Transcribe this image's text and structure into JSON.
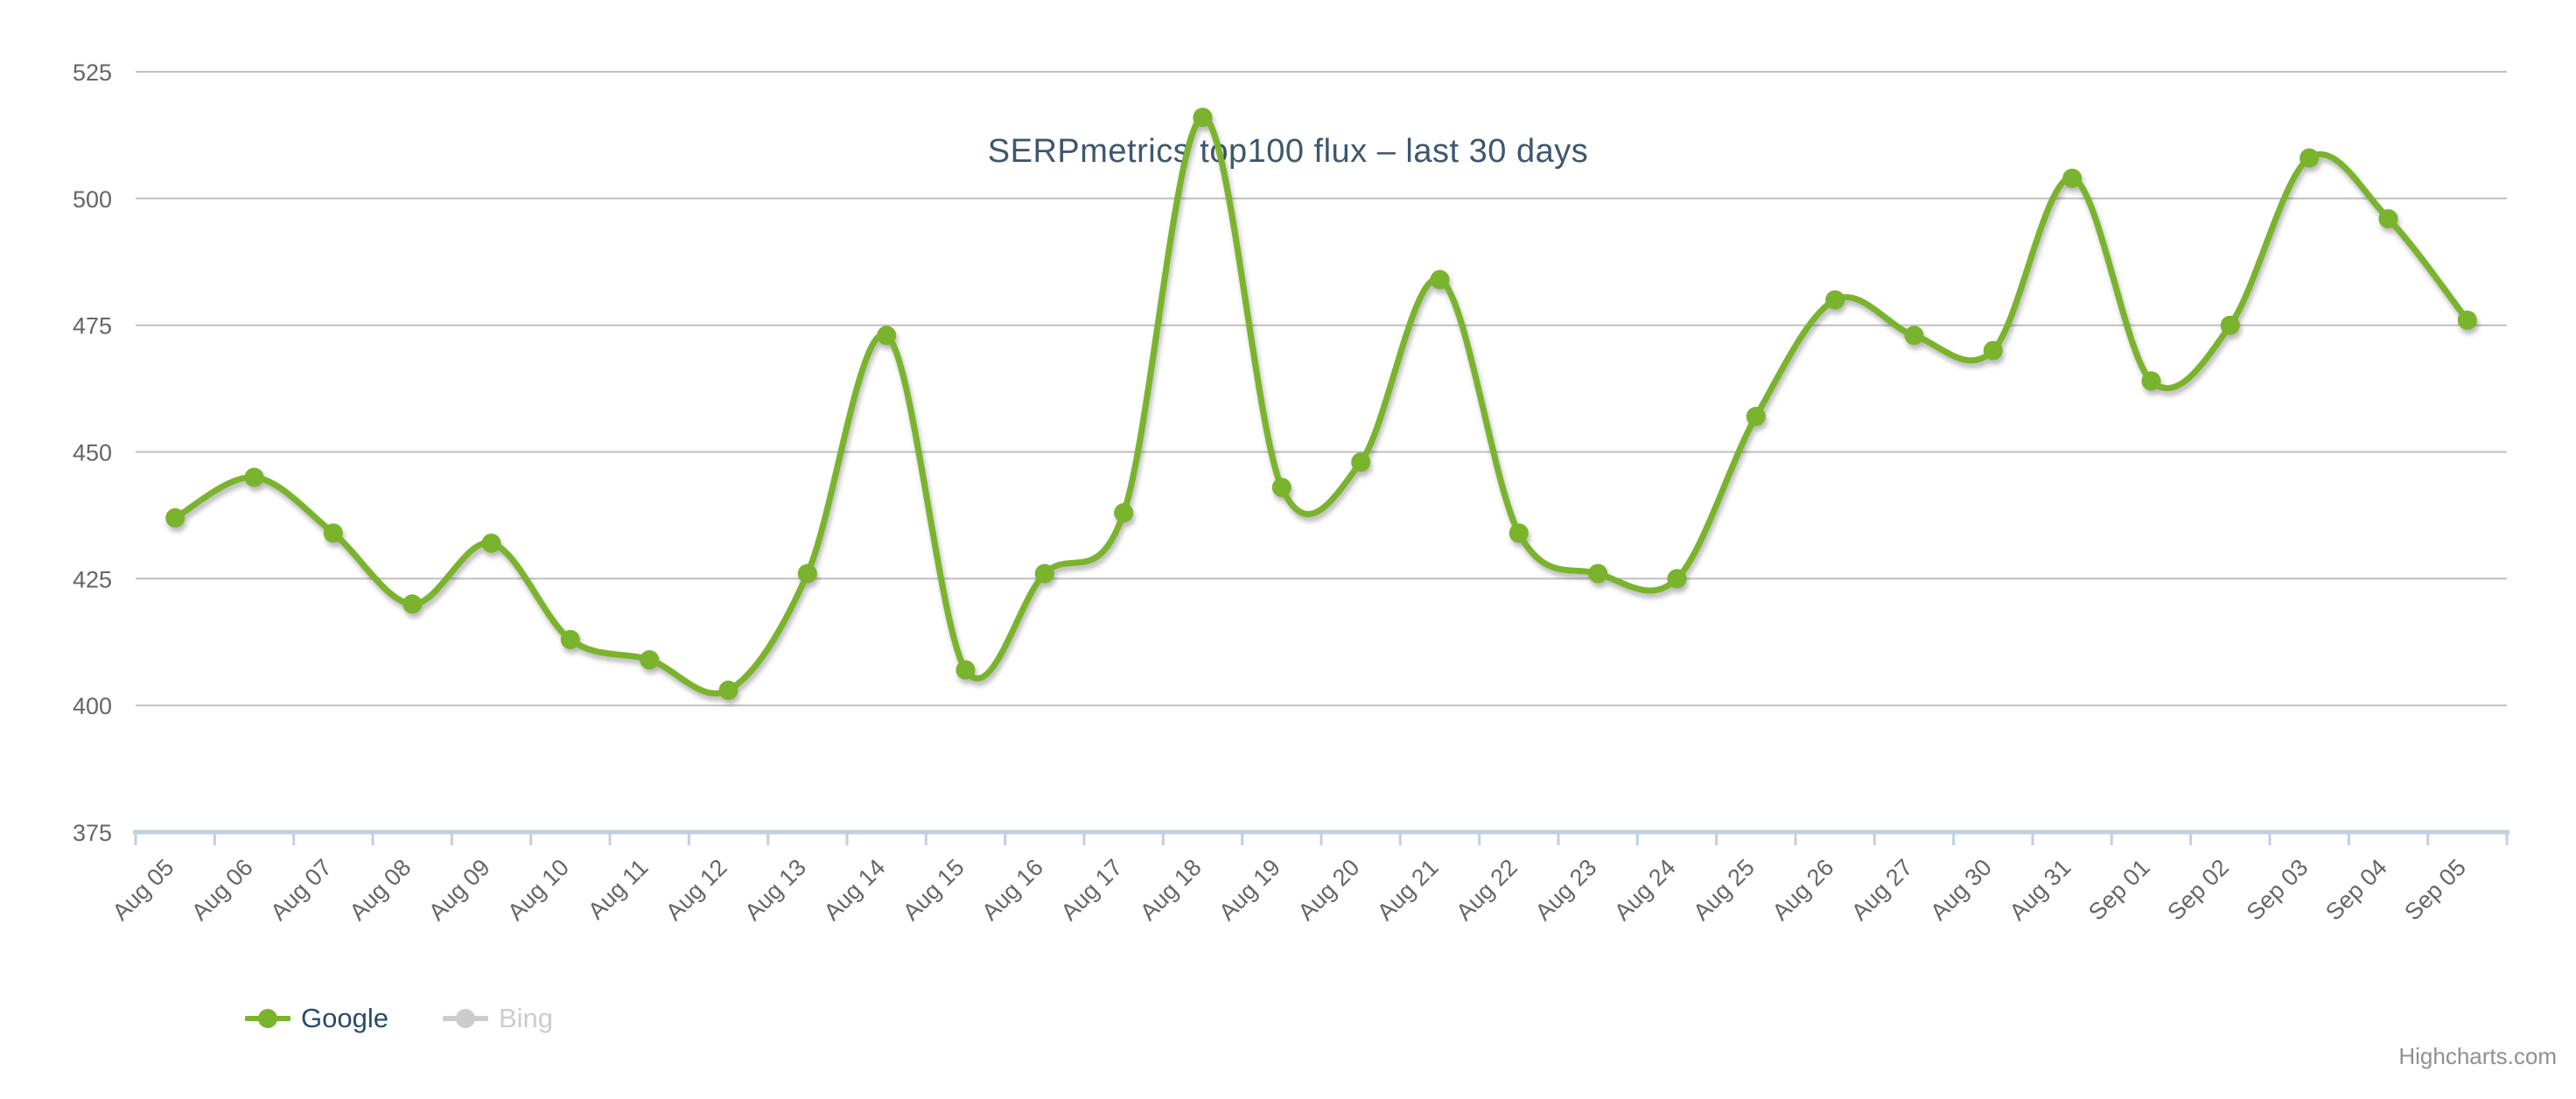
{
  "chart": {
    "title": {
      "text": "SERPmetrics top100 flux – last 30 days",
      "color": "#3e576f"
    },
    "credits": {
      "label": "Highcharts.com",
      "color": "#909090"
    },
    "legend": {
      "position": "bottom-left",
      "items": [
        {
          "label": "Google",
          "symbol_color": "#7ab32c",
          "label_color": "#274b6d",
          "visible": true
        },
        {
          "label": "Bing",
          "symbol_color": "#cccccc",
          "label_color": "#cccccc",
          "visible": false
        }
      ]
    }
  },
  "chart_data": {
    "type": "line",
    "subtype": "spline",
    "title": "SERPmetrics top100 flux – last 30 days",
    "xlabel": "",
    "ylabel": "",
    "categories": [
      "Aug 05",
      "Aug 06",
      "Aug 07",
      "Aug 08",
      "Aug 09",
      "Aug 10",
      "Aug 11",
      "Aug 12",
      "Aug 13",
      "Aug 14",
      "Aug 15",
      "Aug 16",
      "Aug 17",
      "Aug 18",
      "Aug 19",
      "Aug 20",
      "Aug 21",
      "Aug 22",
      "Aug 23",
      "Aug 24",
      "Aug 25",
      "Aug 26",
      "Aug 27",
      "Aug 30",
      "Aug 31",
      "Sep 01",
      "Sep 02",
      "Sep 03",
      "Sep 04",
      "Sep 05"
    ],
    "series": [
      {
        "name": "Google",
        "color": "#7ab32c",
        "visible": true,
        "values": [
          437,
          445,
          434,
          420,
          432,
          413,
          409,
          403,
          426,
          473,
          407,
          426,
          438,
          516,
          443,
          448,
          484,
          434,
          426,
          425,
          457,
          480,
          473,
          470,
          504,
          464,
          475,
          508,
          496,
          476
        ]
      },
      {
        "name": "Bing",
        "color": "#cccccc",
        "visible": false,
        "values": []
      }
    ],
    "ylim": [
      375,
      525
    ],
    "yticks": [
      375,
      400,
      425,
      450,
      475,
      500,
      525
    ],
    "grid": true,
    "marker": "circle",
    "legend_position": "bottom-left",
    "style": {
      "grid_color": "#c0c0c0",
      "axis_line_color": "#c0d0e0",
      "axis_label_color": "#666666",
      "x_label_rotation": -45
    }
  }
}
